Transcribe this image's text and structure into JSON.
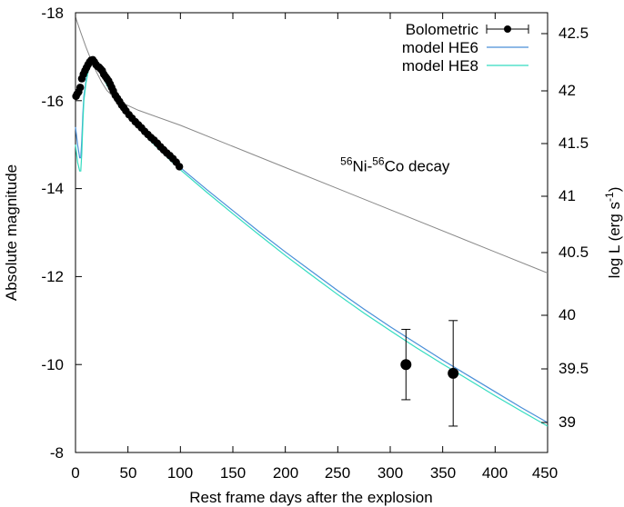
{
  "chart_data": {
    "type": "line",
    "title": "",
    "xlabel": "Rest frame days after the explosion",
    "ylabel_left": "Absolute magnitude",
    "ylabel_right": {
      "prefix": "log L (erg s",
      "exponent": "-1",
      "suffix": ")"
    },
    "xlim": [
      0,
      450
    ],
    "ylim": [
      -8,
      -18
    ],
    "y_right_ticks": [
      "39",
      "39.5",
      "40",
      "40.5",
      "41",
      "41.5",
      "42",
      "42.5"
    ],
    "x_ticks": [
      "0",
      "50",
      "100",
      "150",
      "200",
      "250",
      "300",
      "350",
      "400",
      "450"
    ],
    "y_ticks": [
      "-8",
      "-10",
      "-12",
      "-14",
      "-16",
      "-18"
    ],
    "grid": false,
    "legend_position": "top-right",
    "annotation": {
      "sup1": "56",
      "t1": "Ni-",
      "sup2": "56",
      "t2": "Co decay",
      "x": 315,
      "y": -14.6
    },
    "series": [
      {
        "name": "Bolometric",
        "kind": "points",
        "color": "#000000",
        "x": [
          0.5,
          1.5,
          3,
          4.5,
          6,
          7.5,
          9,
          10.5,
          12,
          13.5,
          15,
          16.5,
          18,
          19.5,
          21,
          22.5,
          24,
          25.5,
          27,
          28.5,
          30,
          31.5,
          33,
          34.5,
          36,
          38,
          40,
          42,
          44,
          46,
          48,
          51,
          54,
          57,
          60,
          63,
          66,
          69,
          72,
          75,
          78,
          81,
          84,
          87,
          90,
          93,
          96,
          99,
          315,
          360
        ],
        "y": [
          -16.1,
          -16.15,
          -16.2,
          -16.3,
          -16.5,
          -16.6,
          -16.68,
          -16.75,
          -16.82,
          -16.88,
          -16.92,
          -16.93,
          -16.88,
          -16.82,
          -16.78,
          -16.76,
          -16.72,
          -16.68,
          -16.6,
          -16.55,
          -16.5,
          -16.45,
          -16.38,
          -16.3,
          -16.22,
          -16.12,
          -16.05,
          -15.98,
          -15.9,
          -15.84,
          -15.77,
          -15.68,
          -15.6,
          -15.52,
          -15.45,
          -15.38,
          -15.3,
          -15.23,
          -15.16,
          -15.1,
          -15.03,
          -14.95,
          -14.88,
          -14.81,
          -14.75,
          -14.68,
          -14.6,
          -14.5,
          -10.0,
          -9.8
        ],
        "errors": [
          null,
          null,
          null,
          null,
          null,
          null,
          null,
          null,
          null,
          null,
          null,
          null,
          null,
          null,
          null,
          null,
          null,
          null,
          null,
          null,
          null,
          null,
          null,
          null,
          null,
          null,
          null,
          null,
          null,
          null,
          null,
          null,
          null,
          null,
          null,
          null,
          null,
          null,
          null,
          null,
          null,
          null,
          null,
          null,
          null,
          null,
          null,
          null,
          0.8,
          1.2
        ]
      },
      {
        "name": "model HE6",
        "kind": "line",
        "color": "#4a8fd8",
        "x": [
          0,
          2,
          4,
          5,
          6,
          7,
          8,
          10,
          12,
          14,
          16,
          18,
          20,
          25,
          30,
          40,
          50,
          60,
          70,
          80,
          90,
          100,
          125,
          150,
          175,
          200,
          225,
          250,
          275,
          300,
          325,
          350,
          375,
          400,
          425,
          450
        ],
        "y": [
          -15.4,
          -15.0,
          -14.7,
          -14.7,
          -15.1,
          -15.7,
          -16.1,
          -16.45,
          -16.7,
          -16.85,
          -16.92,
          -16.92,
          -16.86,
          -16.62,
          -16.38,
          -16.0,
          -15.7,
          -15.42,
          -15.16,
          -14.92,
          -14.7,
          -14.48,
          -13.98,
          -13.5,
          -13.02,
          -12.56,
          -12.12,
          -11.68,
          -11.26,
          -10.86,
          -10.48,
          -10.1,
          -9.74,
          -9.38,
          -9.02,
          -8.68
        ]
      },
      {
        "name": "model HE8",
        "kind": "line",
        "color": "#33dcc0",
        "x": [
          0,
          2,
          4,
          5,
          6,
          7,
          8,
          10,
          12,
          14,
          16,
          18,
          20,
          25,
          30,
          40,
          50,
          60,
          70,
          80,
          90,
          100,
          125,
          150,
          175,
          200,
          225,
          250,
          275,
          300,
          325,
          350,
          375,
          400,
          425,
          450
        ],
        "y": [
          -15.0,
          -14.6,
          -14.4,
          -14.4,
          -14.8,
          -15.5,
          -16.0,
          -16.4,
          -16.65,
          -16.8,
          -16.87,
          -16.88,
          -16.83,
          -16.6,
          -16.35,
          -15.97,
          -15.66,
          -15.38,
          -15.12,
          -14.88,
          -14.65,
          -14.43,
          -13.92,
          -13.43,
          -12.95,
          -12.48,
          -12.03,
          -11.59,
          -11.17,
          -10.77,
          -10.38,
          -10.01,
          -9.65,
          -9.29,
          -8.94,
          -8.6
        ]
      },
      {
        "name": "56Ni-56Co decay",
        "kind": "line",
        "color": "#888888",
        "x": [
          0,
          5,
          10,
          15,
          20,
          25,
          30,
          40,
          60,
          100,
          200,
          300,
          400,
          450
        ],
        "y": [
          -17.9,
          -17.55,
          -17.22,
          -16.92,
          -16.65,
          -16.42,
          -16.23,
          -16.0,
          -15.78,
          -15.44,
          -14.48,
          -13.52,
          -12.56,
          -12.08
        ]
      }
    ]
  }
}
